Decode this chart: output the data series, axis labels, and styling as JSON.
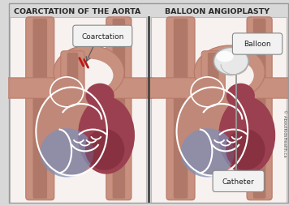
{
  "title_left": "COARCTATION OF THE AORTA",
  "title_right": "BALLOON ANGIOPLASTY",
  "label_coarctation": "Coarctation",
  "label_balloon": "Balloon",
  "label_catheter": "Catheter",
  "copyright": "© AboutKidsHealth.ca",
  "bg_color": "#d8d8d8",
  "panel_bg": "#f7f2ef",
  "skin_light": "#d4a898",
  "skin_mid": "#c49080",
  "skin_dark": "#b07868",
  "vessel_outer": "#b87868",
  "vessel_fill": "#c8907e",
  "heart_right": "#c08878",
  "heart_left": "#9B4050",
  "heart_dark": "#7A2535",
  "blue_purple": "#8090b8",
  "white_line": "#ffffff",
  "coarct_red": "#bb1818",
  "balloon_fill": "#e8e8e8",
  "balloon_edge": "#aaaaaa",
  "divider": "#444444",
  "label_bg": "#f2f2f2",
  "label_edge": "#888888",
  "title_color": "#2a2a2a",
  "catheter_color": "#999999"
}
